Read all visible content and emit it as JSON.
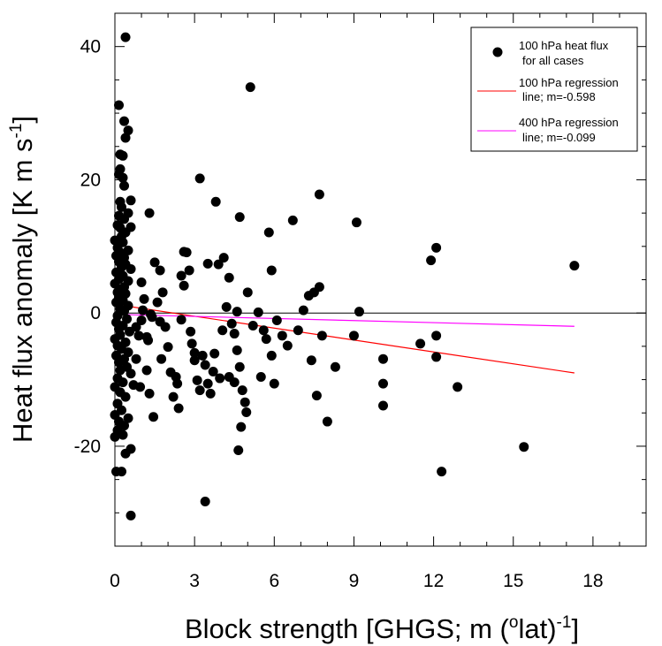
{
  "chart_data": {
    "type": "scatter",
    "title": "",
    "xlabel": "Block strength [GHGS; m (",
    "xlabel_sup1": "o",
    "xlabel_mid": "lat)",
    "xlabel_sup2": "-1",
    "xlabel_end": "]",
    "ylabel": "Heat flux anomaly [K m s",
    "ylabel_sup": "-1",
    "ylabel_end": "]",
    "xlim": [
      0,
      20
    ],
    "ylim": [
      -35,
      45
    ],
    "x_ticks": [
      0,
      3,
      6,
      9,
      12,
      15,
      18
    ],
    "x_tick_labels": [
      "0",
      "3",
      "6",
      "9",
      "12",
      "15",
      "18"
    ],
    "y_ticks": [
      -20,
      0,
      20,
      40
    ],
    "y_tick_labels": [
      "-20",
      "0",
      "20",
      "40"
    ],
    "zero_line": true,
    "grid": false,
    "legend_position": "top-right",
    "series": [
      {
        "name": "100 hPa heat flux for all cases",
        "legend_lines": [
          "100 hPa heat flux",
          "for all cases"
        ],
        "kind": "scatter",
        "color": "#000000",
        "points": [
          [
            0.4,
            41.4
          ],
          [
            5.1,
            33.9
          ],
          [
            0.15,
            31.2
          ],
          [
            0.35,
            28.8
          ],
          [
            0.5,
            27.4
          ],
          [
            0.4,
            26.3
          ],
          [
            0.2,
            23.8
          ],
          [
            0.3,
            23.6
          ],
          [
            0.2,
            21.6
          ],
          [
            0.3,
            20.3
          ],
          [
            0.15,
            20.8
          ],
          [
            0.35,
            19.1
          ],
          [
            0.6,
            16.9
          ],
          [
            0.2,
            16.7
          ],
          [
            0.25,
            15.9
          ],
          [
            0.5,
            15.0
          ],
          [
            0.15,
            14.6
          ],
          [
            0.35,
            14.1
          ],
          [
            0.1,
            13.2
          ],
          [
            0.2,
            12.8
          ],
          [
            0.4,
            12.1
          ],
          [
            0.6,
            12.9
          ],
          [
            0.25,
            11.5
          ],
          [
            0.0,
            10.9
          ],
          [
            0.3,
            10.6
          ],
          [
            0.1,
            9.8
          ],
          [
            0.5,
            9.4
          ],
          [
            0.2,
            9.1
          ],
          [
            0.05,
            8.6
          ],
          [
            0.35,
            8.3
          ],
          [
            0.15,
            7.7
          ],
          [
            0.4,
            7.3
          ],
          [
            0.25,
            6.9
          ],
          [
            0.6,
            6.6
          ],
          [
            0.05,
            6.1
          ],
          [
            0.3,
            5.6
          ],
          [
            0.15,
            5.1
          ],
          [
            0.5,
            4.8
          ],
          [
            0.0,
            4.4
          ],
          [
            0.35,
            3.9
          ],
          [
            0.2,
            3.6
          ],
          [
            0.1,
            3.1
          ],
          [
            0.4,
            2.9
          ],
          [
            0.15,
            2.4
          ],
          [
            0.3,
            1.9
          ],
          [
            0.05,
            1.6
          ],
          [
            0.5,
            1.1
          ],
          [
            0.2,
            0.6
          ],
          [
            0.35,
            0.3
          ],
          [
            0.1,
            -0.4
          ],
          [
            0.45,
            -0.9
          ],
          [
            0.05,
            -1.4
          ],
          [
            0.3,
            -1.9
          ],
          [
            0.15,
            -2.4
          ],
          [
            0.55,
            -2.8
          ],
          [
            0.2,
            -3.3
          ],
          [
            0.0,
            -3.9
          ],
          [
            0.4,
            -4.4
          ],
          [
            0.1,
            -4.9
          ],
          [
            0.25,
            -5.4
          ],
          [
            0.5,
            -5.9
          ],
          [
            0.05,
            -6.4
          ],
          [
            0.35,
            -6.9
          ],
          [
            0.15,
            -7.4
          ],
          [
            0.45,
            -8.1
          ],
          [
            0.2,
            -8.6
          ],
          [
            0.6,
            -9.1
          ],
          [
            0.1,
            -9.8
          ],
          [
            0.3,
            -10.4
          ],
          [
            0.0,
            -11.1
          ],
          [
            0.2,
            -11.9
          ],
          [
            0.4,
            -12.6
          ],
          [
            0.1,
            -13.6
          ],
          [
            0.25,
            -14.6
          ],
          [
            0.0,
            -15.3
          ],
          [
            0.5,
            -15.8
          ],
          [
            0.15,
            -16.3
          ],
          [
            0.35,
            -16.9
          ],
          [
            0.1,
            -17.6
          ],
          [
            0.3,
            -18.3
          ],
          [
            0.0,
            -18.6
          ],
          [
            0.6,
            -20.4
          ],
          [
            0.4,
            -21.1
          ],
          [
            0.25,
            -23.8
          ],
          [
            0.05,
            -23.8
          ],
          [
            0.6,
            -30.4
          ],
          [
            3.4,
            -28.3
          ],
          [
            1.0,
            4.6
          ],
          [
            1.1,
            2.1
          ],
          [
            0.9,
            -3.4
          ],
          [
            0.8,
            -6.9
          ],
          [
            1.2,
            -8.6
          ],
          [
            0.95,
            -11.1
          ],
          [
            1.3,
            -12.1
          ],
          [
            1.25,
            -4.1
          ],
          [
            1.05,
            0.4
          ],
          [
            1.4,
            -0.6
          ],
          [
            1.5,
            7.6
          ],
          [
            1.7,
            6.4
          ],
          [
            1.8,
            3.1
          ],
          [
            1.6,
            1.6
          ],
          [
            1.9,
            -2.1
          ],
          [
            2.0,
            -5.1
          ],
          [
            1.75,
            -6.9
          ],
          [
            2.1,
            -8.9
          ],
          [
            2.3,
            -9.6
          ],
          [
            2.2,
            -12.6
          ],
          [
            2.4,
            -14.3
          ],
          [
            1.45,
            -15.6
          ],
          [
            2.5,
            5.6
          ],
          [
            2.6,
            4.1
          ],
          [
            2.7,
            9.1
          ],
          [
            2.8,
            6.4
          ],
          [
            2.9,
            -4.6
          ],
          [
            3.0,
            -7.1
          ],
          [
            3.1,
            -10.1
          ],
          [
            3.2,
            -11.6
          ],
          [
            3.3,
            -6.4
          ],
          [
            3.5,
            -10.6
          ],
          [
            3.6,
            -12.1
          ],
          [
            3.2,
            20.2
          ],
          [
            3.9,
            7.3
          ],
          [
            3.8,
            16.7
          ],
          [
            4.1,
            8.3
          ],
          [
            4.2,
            0.9
          ],
          [
            4.4,
            -1.6
          ],
          [
            4.5,
            -3.1
          ],
          [
            4.6,
            -5.6
          ],
          [
            4.7,
            -8.1
          ],
          [
            4.3,
            -9.6
          ],
          [
            4.5,
            -10.4
          ],
          [
            4.8,
            -11.6
          ],
          [
            4.9,
            -13.4
          ],
          [
            4.95,
            -14.9
          ],
          [
            4.75,
            -17.1
          ],
          [
            4.65,
            -20.6
          ],
          [
            4.7,
            14.4
          ],
          [
            4.6,
            0.2
          ],
          [
            5.0,
            3.1
          ],
          [
            5.2,
            -1.9
          ],
          [
            5.4,
            0.1
          ],
          [
            5.6,
            -2.6
          ],
          [
            5.5,
            -9.6
          ],
          [
            5.7,
            -3.9
          ],
          [
            5.9,
            -6.4
          ],
          [
            6.0,
            -10.6
          ],
          [
            5.8,
            12.1
          ],
          [
            5.9,
            6.4
          ],
          [
            6.1,
            -1.1
          ],
          [
            6.3,
            -3.4
          ],
          [
            6.5,
            -4.9
          ],
          [
            6.7,
            13.9
          ],
          [
            6.9,
            -2.6
          ],
          [
            7.1,
            0.4
          ],
          [
            7.3,
            2.6
          ],
          [
            7.4,
            -7.1
          ],
          [
            7.5,
            3.1
          ],
          [
            7.6,
            -12.4
          ],
          [
            7.7,
            17.8
          ],
          [
            7.7,
            3.9
          ],
          [
            7.8,
            -3.4
          ],
          [
            8.0,
            -16.3
          ],
          [
            8.3,
            -8.1
          ],
          [
            9.0,
            -3.4
          ],
          [
            9.1,
            13.6
          ],
          [
            9.2,
            0.2
          ],
          [
            10.1,
            -6.9
          ],
          [
            10.1,
            -10.6
          ],
          [
            10.1,
            -13.9
          ],
          [
            11.5,
            -4.6
          ],
          [
            11.9,
            7.9
          ],
          [
            12.1,
            9.8
          ],
          [
            12.1,
            -3.4
          ],
          [
            12.1,
            -6.6
          ],
          [
            12.3,
            -23.8
          ],
          [
            12.9,
            -11.1
          ],
          [
            15.4,
            -20.1
          ],
          [
            17.3,
            7.1
          ],
          [
            1.3,
            15.0
          ],
          [
            2.6,
            9.2
          ],
          [
            3.5,
            7.4
          ],
          [
            4.3,
            5.3
          ],
          [
            0.7,
            -10.8
          ],
          [
            0.8,
            -2.1
          ],
          [
            1.0,
            -1.1
          ],
          [
            1.2,
            -3.6
          ],
          [
            1.35,
            -0.2
          ],
          [
            2.5,
            -1.0
          ],
          [
            2.85,
            -2.8
          ],
          [
            3.0,
            -6.0
          ],
          [
            3.4,
            -7.8
          ],
          [
            3.7,
            -8.8
          ],
          [
            3.95,
            -9.8
          ],
          [
            4.05,
            -2.6
          ],
          [
            1.7,
            -1.3
          ],
          [
            2.35,
            -10.6
          ],
          [
            3.75,
            -6.1
          ]
        ]
      },
      {
        "name": "100 hPa regression line; m=-0.598",
        "legend_lines": [
          "100 hPa regression",
          "line; m=-0.598"
        ],
        "kind": "line",
        "color": "#ff0000",
        "x": [
          0,
          17.3
        ],
        "y": [
          1.3,
          -9.0
        ]
      },
      {
        "name": "400 hPa regression line; m=-0.099",
        "legend_lines": [
          "400 hPa regression",
          "line; m=-0.099"
        ],
        "kind": "line",
        "color": "#ff00ff",
        "x": [
          0,
          17.3
        ],
        "y": [
          -0.2,
          -2.0
        ]
      }
    ]
  }
}
